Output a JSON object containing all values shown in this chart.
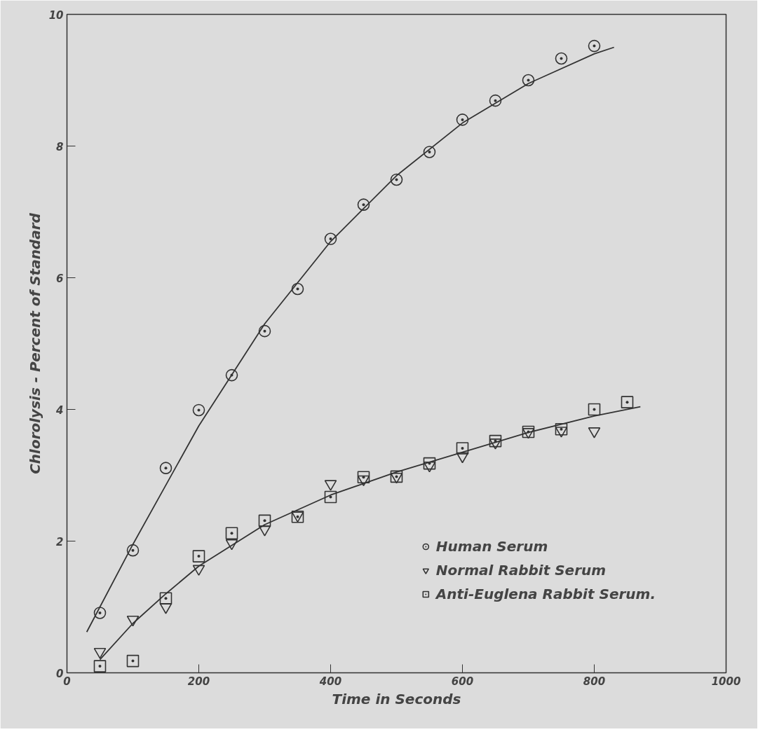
{
  "chart_data": {
    "type": "scatter",
    "xlabel": "Time in Seconds",
    "ylabel": "Chlorolysis - Percent of Standard",
    "x": [
      50,
      100,
      150,
      200,
      250,
      300,
      350,
      400,
      450,
      500,
      550,
      600,
      650,
      700,
      750,
      800
    ],
    "series": [
      {
        "name": "Human Serum",
        "color": "#333333",
        "marker": "circle",
        "values": [
          0.91,
          1.86,
          3.11,
          3.99,
          4.52,
          5.19,
          5.83,
          6.59,
          7.11,
          7.49,
          7.91,
          8.4,
          8.69,
          9.0,
          9.33,
          9.52
        ]
      },
      {
        "name": "Normal Rabbit Serum",
        "color": "#333333",
        "marker": "triangle",
        "values": [
          0.32,
          0.81,
          1.0,
          1.58,
          1.97,
          2.18,
          2.39,
          2.87,
          2.94,
          2.98,
          3.15,
          3.29,
          3.5,
          3.66,
          3.68,
          3.67
        ]
      },
      {
        "name": "Anti-Euglena Rabbit Serum.",
        "color": "#333333",
        "marker": "square",
        "x": [
          50,
          100,
          150,
          200,
          250,
          300,
          350,
          400,
          450,
          500,
          550,
          600,
          650,
          700,
          750,
          800,
          850
        ],
        "values": [
          0.1,
          0.18,
          1.13,
          1.77,
          2.12,
          2.31,
          2.37,
          2.67,
          2.97,
          2.98,
          3.18,
          3.41,
          3.52,
          3.66,
          3.7,
          4.0,
          4.11
        ]
      },
      {
        "type": "line",
        "color": "#333333",
        "x": [
          30,
          100,
          200,
          300,
          400,
          500,
          600,
          700,
          800,
          830
        ],
        "values": [
          0.62,
          1.95,
          3.75,
          5.3,
          6.55,
          7.55,
          8.35,
          8.95,
          9.4,
          9.5
        ]
      },
      {
        "type": "line",
        "color": "#333333",
        "x": [
          50,
          100,
          150,
          200,
          300,
          400,
          500,
          600,
          700,
          800,
          870
        ],
        "values": [
          0.2,
          0.75,
          1.2,
          1.62,
          2.25,
          2.7,
          3.05,
          3.35,
          3.65,
          3.9,
          4.04
        ]
      }
    ],
    "xlim": [
      0,
      1000
    ],
    "ylim": [
      0,
      10
    ],
    "xticks": [
      0,
      200,
      400,
      600,
      800,
      1000
    ],
    "yticks": [
      0,
      2,
      4,
      6,
      8,
      10
    ],
    "grid": false,
    "legend": "bottom right",
    "line_style": "solid"
  }
}
